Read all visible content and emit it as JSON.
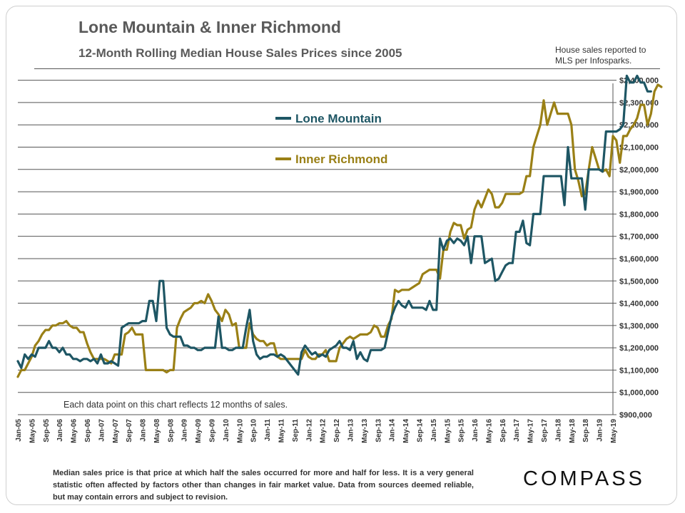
{
  "header": {
    "title": "Lone Mountain & Inner Richmond",
    "subtitle": "12-Month Rolling Median House Sales Prices since 2005",
    "source_note": "House sales reported to MLS per Infosparks."
  },
  "chart_note": "Each data point on this chart reflects 12 months of sales.",
  "footnote": "Median sales price is that price at which half the sales occurred for more and half for less. It is a very general statistic often affected by factors other than changes in fair market value. Data from sources deemed reliable, but may contain errors and subject to revision.",
  "logo": "COMPASS",
  "colors": {
    "lone_mountain": "#1e5664",
    "inner_richmond": "#9a8016",
    "grid": "#555555"
  },
  "chart_data": {
    "type": "line",
    "title": "12-Month Rolling Median House Sales Prices since 2005",
    "ylim": [
      900000,
      2450000
    ],
    "y_ticks": [
      900000,
      1000000,
      1100000,
      1200000,
      1300000,
      1400000,
      1500000,
      1600000,
      1700000,
      1800000,
      1900000,
      2000000,
      2100000,
      2200000,
      2300000,
      2400000
    ],
    "y_tick_labels": [
      "$900,000",
      "$1,000,000",
      "$1,100,000",
      "$1,200,000",
      "$1,300,000",
      "$1,400,000",
      "$1,500,000",
      "$1,600,000",
      "$1,700,000",
      "$1,800,000",
      "$1,900,000",
      "$2,000,000",
      "$2,100,000",
      "$2,200,000",
      "$2,300,000",
      "$2,400,000"
    ],
    "x_start": "Jan-05",
    "x_tick_labels": [
      "Jan-05",
      "May-05",
      "Sep-05",
      "Jan-06",
      "May-06",
      "Sep-06",
      "Jan-07",
      "May-07",
      "Sep-07",
      "Jan-08",
      "May-08",
      "Sep-08",
      "Jan-09",
      "May-09",
      "Sep-09",
      "Jan-10",
      "May-10",
      "Sep-10",
      "Jan-11",
      "May-11",
      "Sep-11",
      "Jan-12",
      "May-12",
      "Sep-12",
      "Jan-13",
      "May-13",
      "Sep-13",
      "Jan-14",
      "May-14",
      "Sep-14",
      "Jan-15",
      "May-15",
      "Sep-15",
      "Jan-16",
      "May-16",
      "Sep-16",
      "Jan-17",
      "May-17",
      "Sep-17",
      "Jan-18",
      "May-18",
      "Sep-18",
      "Jan-19",
      "May-19"
    ],
    "legend": [
      "Lone Mountain",
      "Inner Richmond"
    ],
    "series": [
      {
        "name": "Lone Mountain",
        "values": [
          1140000,
          1110000,
          1170000,
          1150000,
          1170000,
          1160000,
          1200000,
          1200000,
          1200000,
          1230000,
          1200000,
          1200000,
          1180000,
          1200000,
          1170000,
          1170000,
          1150000,
          1150000,
          1140000,
          1150000,
          1150000,
          1140000,
          1150000,
          1130000,
          1170000,
          1130000,
          1130000,
          1140000,
          1130000,
          1120000,
          1290000,
          1300000,
          1310000,
          1310000,
          1310000,
          1310000,
          1320000,
          1320000,
          1410000,
          1410000,
          1320000,
          1500000,
          1500000,
          1290000,
          1260000,
          1250000,
          1250000,
          1250000,
          1210000,
          1210000,
          1200000,
          1200000,
          1190000,
          1190000,
          1200000,
          1200000,
          1200000,
          1200000,
          1340000,
          1200000,
          1200000,
          1190000,
          1190000,
          1200000,
          1200000,
          1200000,
          1290000,
          1370000,
          1230000,
          1170000,
          1150000,
          1160000,
          1160000,
          1170000,
          1170000,
          1160000,
          1170000,
          1160000,
          1140000,
          1120000,
          1100000,
          1080000,
          1180000,
          1210000,
          1190000,
          1170000,
          1180000,
          1160000,
          1170000,
          1160000,
          1190000,
          1200000,
          1210000,
          1230000,
          1200000,
          1200000,
          1190000,
          1230000,
          1150000,
          1180000,
          1150000,
          1140000,
          1190000,
          1190000,
          1190000,
          1190000,
          1200000,
          1270000,
          1340000,
          1380000,
          1410000,
          1390000,
          1380000,
          1410000,
          1380000,
          1380000,
          1380000,
          1380000,
          1370000,
          1410000,
          1370000,
          1370000,
          1690000,
          1640000,
          1680000,
          1690000,
          1670000,
          1690000,
          1680000,
          1660000,
          1700000,
          1580000,
          1700000,
          1700000,
          1700000,
          1580000,
          1590000,
          1600000,
          1500000,
          1510000,
          1540000,
          1570000,
          1580000,
          1580000,
          1720000,
          1720000,
          1770000,
          1670000,
          1660000,
          1800000,
          1800000,
          1800000,
          1970000,
          1970000,
          1970000,
          1970000,
          1970000,
          1970000,
          1840000,
          2100000,
          1960000,
          1960000,
          1960000,
          1960000,
          1820000,
          2000000,
          2000000,
          2000000,
          2000000,
          1990000,
          2170000,
          2170000,
          2170000,
          2170000,
          2180000,
          2200000,
          2420000,
          2390000,
          2390000,
          2420000,
          2390000,
          2390000,
          2350000,
          2350000
        ]
      },
      {
        "name": "Inner Richmond",
        "values": [
          1070000,
          1100000,
          1100000,
          1130000,
          1160000,
          1210000,
          1230000,
          1260000,
          1280000,
          1280000,
          1300000,
          1300000,
          1310000,
          1310000,
          1320000,
          1300000,
          1290000,
          1290000,
          1270000,
          1270000,
          1220000,
          1180000,
          1150000,
          1150000,
          1150000,
          1150000,
          1140000,
          1130000,
          1170000,
          1170000,
          1170000,
          1260000,
          1270000,
          1290000,
          1260000,
          1260000,
          1260000,
          1100000,
          1100000,
          1100000,
          1100000,
          1100000,
          1100000,
          1090000,
          1100000,
          1100000,
          1290000,
          1330000,
          1360000,
          1370000,
          1380000,
          1400000,
          1400000,
          1410000,
          1400000,
          1440000,
          1410000,
          1370000,
          1350000,
          1320000,
          1370000,
          1350000,
          1300000,
          1310000,
          1200000,
          1200000,
          1200000,
          1310000,
          1260000,
          1240000,
          1230000,
          1230000,
          1210000,
          1220000,
          1220000,
          1160000,
          1150000,
          1150000,
          1150000,
          1150000,
          1150000,
          1150000,
          1150000,
          1190000,
          1160000,
          1150000,
          1150000,
          1170000,
          1170000,
          1190000,
          1140000,
          1140000,
          1140000,
          1200000,
          1220000,
          1240000,
          1250000,
          1240000,
          1250000,
          1260000,
          1260000,
          1260000,
          1270000,
          1300000,
          1290000,
          1250000,
          1250000,
          1300000,
          1330000,
          1460000,
          1450000,
          1460000,
          1460000,
          1460000,
          1470000,
          1480000,
          1490000,
          1530000,
          1540000,
          1550000,
          1550000,
          1550000,
          1510000,
          1640000,
          1640000,
          1720000,
          1760000,
          1750000,
          1750000,
          1690000,
          1730000,
          1740000,
          1820000,
          1860000,
          1830000,
          1870000,
          1910000,
          1890000,
          1830000,
          1830000,
          1850000,
          1890000,
          1890000,
          1890000,
          1890000,
          1890000,
          1900000,
          1970000,
          1970000,
          2100000,
          2150000,
          2200000,
          2310000,
          2200000,
          2250000,
          2300000,
          2250000,
          2250000,
          2250000,
          2250000,
          2200000,
          2000000,
          1950000,
          1880000,
          1890000,
          2000000,
          2100000,
          2050000,
          2000000,
          1990000,
          2000000,
          1970000,
          2150000,
          2130000,
          2030000,
          2150000,
          2150000,
          2180000,
          2200000,
          2230000,
          2290000,
          2290000,
          2200000,
          2250000,
          2350000,
          2380000,
          2370000
        ]
      }
    ]
  }
}
